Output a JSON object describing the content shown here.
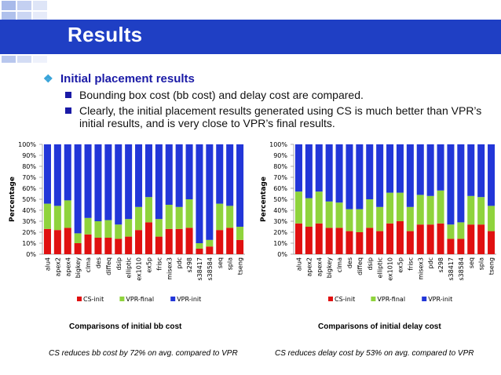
{
  "slide": {
    "title": "Results",
    "bullet": "Initial placement results",
    "sub_bullets": [
      "Bounding box cost (bb cost) and delay cost are compared.",
      "Clearly, the initial placement results generated using CS is much better than VPR’s initial results, and is very close to VPR’s final results."
    ],
    "captions": [
      "Comparisons of initial bb cost",
      "Comparisons of initial delay cost"
    ],
    "notes": [
      "CS reduces bb cost by 72% on avg. compared to VPR",
      "CS reduces delay cost by 53% on avg. compared to VPR"
    ]
  },
  "colors": {
    "title_band": "#1f3fc4",
    "bullet_text": "#1a1aa6",
    "bullet_marker": "#3aa4d9",
    "cs_init": "#e01010",
    "vpr_final": "#8fd33c",
    "vpr_init": "#2236d8"
  },
  "chart_data": [
    {
      "type": "bar",
      "stacked": true,
      "ylabel": "Percentage",
      "ylim": [
        0,
        100
      ],
      "yticks": [
        "0%",
        "10%",
        "20%",
        "30%",
        "40%",
        "50%",
        "60%",
        "70%",
        "80%",
        "90%",
        "100%"
      ],
      "categories": [
        "alu4",
        "apex2",
        "apex4",
        "bigkey",
        "clma",
        "des",
        "diffeq",
        "dsip",
        "elliptic",
        "ex1010",
        "ex5p",
        "frisc",
        "misex3",
        "pdc",
        "s298",
        "s38417",
        "s38584",
        "seq",
        "spla",
        "tseng"
      ],
      "series": [
        {
          "name": "CS-init",
          "values": [
            23,
            22,
            24,
            10,
            18,
            15,
            15,
            14,
            16,
            22,
            29,
            16,
            23,
            23,
            24,
            5,
            7,
            22,
            24,
            13
          ]
        },
        {
          "name": "VPR-final",
          "values": [
            23,
            22,
            25,
            9,
            15,
            15,
            16,
            13,
            16,
            21,
            23,
            16,
            22,
            20,
            26,
            5,
            6,
            24,
            20,
            12
          ]
        },
        {
          "name": "VPR-init",
          "values": [
            54,
            56,
            51,
            81,
            67,
            70,
            69,
            73,
            68,
            57,
            48,
            68,
            55,
            57,
            50,
            90,
            87,
            54,
            56,
            75
          ]
        }
      ],
      "legend": "bottom",
      "grid": false
    },
    {
      "type": "bar",
      "stacked": true,
      "ylabel": "Percentage",
      "ylim": [
        0,
        100
      ],
      "yticks": [
        "0%",
        "10%",
        "20%",
        "30%",
        "40%",
        "50%",
        "60%",
        "70%",
        "80%",
        "90%",
        "100%"
      ],
      "categories": [
        "alu4",
        "apex2",
        "apex4",
        "bigkey",
        "clma",
        "des",
        "diffeq",
        "dsip",
        "elliptic",
        "ex1010",
        "ex5p",
        "frisc",
        "misex3",
        "pdc",
        "s298",
        "s38417",
        "s38584",
        "seq",
        "spla",
        "tseng"
      ],
      "series": [
        {
          "name": "CS-init",
          "values": [
            28,
            25,
            28,
            24,
            24,
            21,
            20,
            24,
            21,
            28,
            30,
            21,
            27,
            27,
            28,
            14,
            14,
            27,
            27,
            21
          ]
        },
        {
          "name": "VPR-final",
          "values": [
            29,
            26,
            29,
            24,
            23,
            20,
            21,
            26,
            22,
            28,
            26,
            22,
            27,
            26,
            30,
            13,
            15,
            26,
            25,
            23
          ]
        },
        {
          "name": "VPR-init",
          "values": [
            43,
            49,
            43,
            52,
            53,
            59,
            59,
            50,
            57,
            44,
            44,
            57,
            46,
            47,
            42,
            73,
            71,
            47,
            48,
            56
          ]
        }
      ],
      "legend": "bottom",
      "grid": false
    }
  ]
}
